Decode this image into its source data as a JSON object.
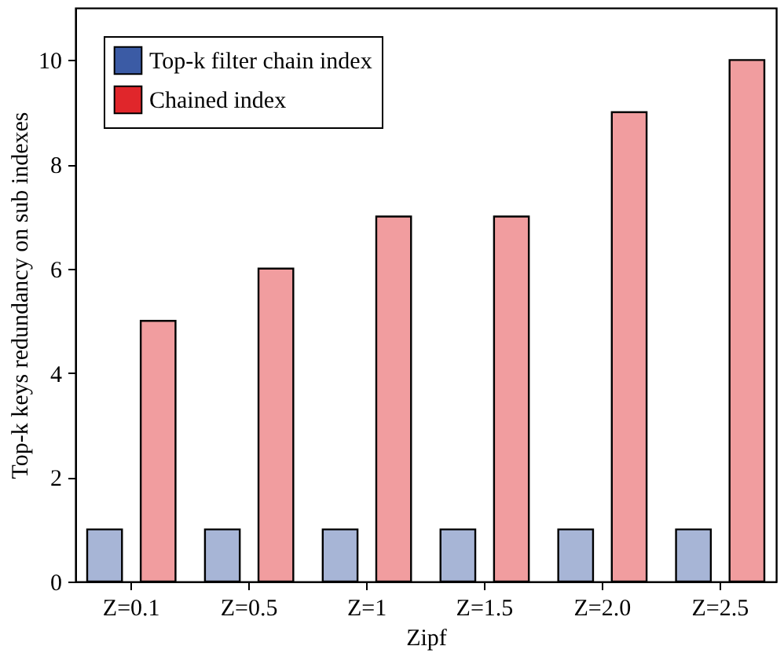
{
  "chart_data": {
    "type": "bar",
    "xlabel": "Zipf",
    "ylabel": "Top-k keys redundancy on sub indexes",
    "categories": [
      "Z=0.1",
      "Z=0.5",
      "Z=1",
      "Z=1.5",
      "Z=2.0",
      "Z=2.5"
    ],
    "series": [
      {
        "name": "Top-k filter chain index",
        "color": "#3b5ba5",
        "values": [
          1,
          1,
          1,
          1,
          1,
          1
        ]
      },
      {
        "name": "Chained index",
        "color": "#e0262b",
        "values": [
          5,
          6,
          7,
          7,
          9,
          10
        ]
      }
    ],
    "ylim": [
      0,
      11
    ],
    "yticks": [
      0,
      2,
      4,
      6,
      8,
      10
    ],
    "grid": false,
    "legend": "top left"
  }
}
